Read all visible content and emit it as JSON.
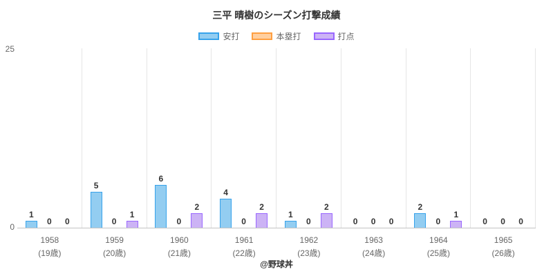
{
  "title": "三平 晴樹のシーズン打撃成績",
  "footer": "@野球丼",
  "chart_data": {
    "type": "bar",
    "title": "三平 晴樹のシーズン打撃成績",
    "categories": [
      "1958",
      "1959",
      "1960",
      "1961",
      "1962",
      "1963",
      "1964",
      "1965"
    ],
    "category_sublabels": [
      "(19歳)",
      "(20歳)",
      "(21歳)",
      "(22歳)",
      "(23歳)",
      "(24歳)",
      "(25歳)",
      "(26歳)"
    ],
    "series": [
      {
        "name": "安打",
        "fill": "#93cdf1",
        "border": "#36a2eb",
        "values": [
          1,
          5,
          6,
          4,
          1,
          0,
          2,
          0
        ]
      },
      {
        "name": "本塁打",
        "fill": "#ffcf9f",
        "border": "#ff9f40",
        "values": [
          0,
          0,
          0,
          0,
          0,
          0,
          0,
          0
        ]
      },
      {
        "name": "打点",
        "fill": "#ccb3f5",
        "border": "#9966ff",
        "values": [
          0,
          1,
          2,
          2,
          2,
          0,
          1,
          0
        ]
      }
    ],
    "ylim": [
      0,
      25
    ],
    "yticks": [
      "0",
      "25"
    ],
    "grid": "vertical",
    "legend_position": "top",
    "value_labels": true,
    "xlabel": "",
    "ylabel": ""
  }
}
